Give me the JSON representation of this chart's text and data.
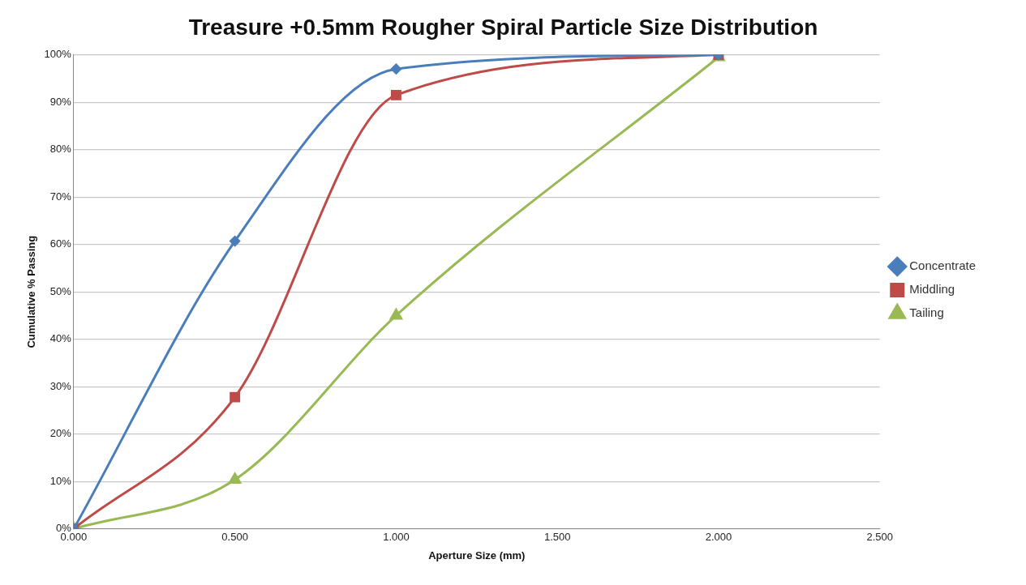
{
  "chart_data": {
    "type": "line",
    "title": "Treasure +0.5mm Rougher Spiral Particle Size Distribution",
    "xlabel": "Aperture Size (mm)",
    "ylabel": "Cumulative % Passing",
    "x": [
      0,
      0.5,
      1,
      2
    ],
    "series": [
      {
        "name": "Concentrate",
        "color": "#4a7ebb",
        "marker": "diamond",
        "values": [
          0,
          60.7,
          97,
          100
        ]
      },
      {
        "name": "Middling",
        "color": "#be4b48",
        "marker": "square",
        "values": [
          0,
          27.8,
          91.5,
          100
        ]
      },
      {
        "name": "Tailing",
        "color": "#98b954",
        "marker": "triangle",
        "values": [
          0,
          10.4,
          45,
          99.5
        ]
      }
    ],
    "xlim": [
      0,
      2.5
    ],
    "xticks": [
      {
        "value": 0,
        "label": "0.000"
      },
      {
        "value": 0.5,
        "label": "0.500"
      },
      {
        "value": 1,
        "label": "1.000"
      },
      {
        "value": 1.5,
        "label": "1.500"
      },
      {
        "value": 2,
        "label": "2.000"
      },
      {
        "value": 2.5,
        "label": "2.500"
      }
    ],
    "ylim": [
      0,
      100
    ],
    "yticks": [
      {
        "value": 0,
        "label": "0%"
      },
      {
        "value": 10,
        "label": "10%"
      },
      {
        "value": 20,
        "label": "20%"
      },
      {
        "value": 30,
        "label": "30%"
      },
      {
        "value": 40,
        "label": "40%"
      },
      {
        "value": 50,
        "label": "50%"
      },
      {
        "value": 60,
        "label": "60%"
      },
      {
        "value": 70,
        "label": "70%"
      },
      {
        "value": 80,
        "label": "80%"
      },
      {
        "value": 90,
        "label": "90%"
      },
      {
        "value": 100,
        "label": "100%"
      }
    ],
    "grid": "y",
    "legend": "right",
    "line_style": "solid"
  }
}
